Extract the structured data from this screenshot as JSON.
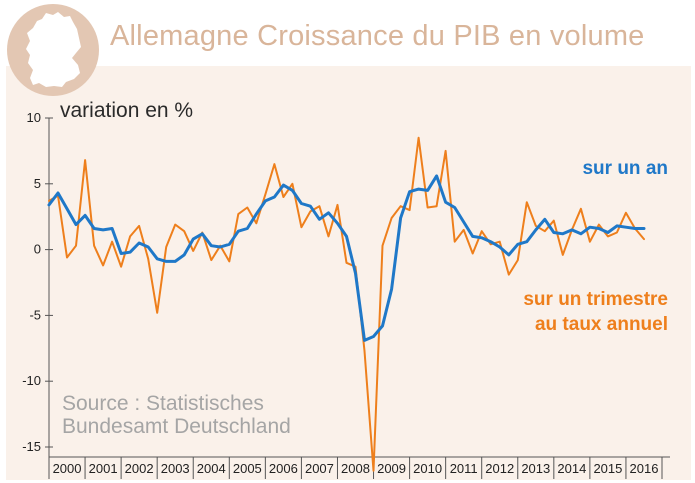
{
  "title": "Allemagne Croissance du PIB en volume",
  "logo": {
    "icon": "germany-map-icon",
    "fill": "#ffffff",
    "circle": "#d9b59a"
  },
  "unit_label": "variation en %",
  "source": "Source : Statistisches Bundesamt Deutschland",
  "annotations": {
    "annual": "sur un an",
    "quarterly": "sur un trimestre au taux annuel"
  },
  "colors": {
    "annual": "#1f78c8",
    "quarterly": "#ee7f1c",
    "title": "#d9b59a",
    "background": "#faf1ea"
  },
  "chart_data": {
    "type": "line",
    "title": "Allemagne Croissance du PIB en volume",
    "ylabel": "variation en %",
    "xlabel": "",
    "ylim": [
      -15,
      10
    ],
    "yticks": [
      10,
      5,
      0,
      -5,
      -10,
      -15
    ],
    "xlim": [
      2000.0,
      2017.0
    ],
    "xticks": [
      "2000",
      "2001",
      "2002",
      "2003",
      "2004",
      "2005",
      "2006",
      "2007",
      "2008",
      "2009",
      "2010",
      "2011",
      "2012",
      "2013",
      "2014",
      "2015",
      "2016"
    ],
    "grid": false,
    "series": [
      {
        "name": "sur un an",
        "color": "#1f78c8",
        "x": [
          2000.0,
          2000.25,
          2000.5,
          2000.75,
          2001.0,
          2001.25,
          2001.5,
          2001.75,
          2002.0,
          2002.25,
          2002.5,
          2002.75,
          2003.0,
          2003.25,
          2003.5,
          2003.75,
          2004.0,
          2004.25,
          2004.5,
          2004.75,
          2005.0,
          2005.25,
          2005.5,
          2005.75,
          2006.0,
          2006.25,
          2006.5,
          2006.75,
          2007.0,
          2007.25,
          2007.5,
          2007.75,
          2008.0,
          2008.25,
          2008.5,
          2008.75,
          2009.0,
          2009.25,
          2009.5,
          2009.75,
          2010.0,
          2010.25,
          2010.5,
          2010.75,
          2011.0,
          2011.25,
          2011.5,
          2011.75,
          2012.0,
          2012.25,
          2012.5,
          2012.75,
          2013.0,
          2013.25,
          2013.5,
          2013.75,
          2014.0,
          2014.25,
          2014.5,
          2014.75,
          2015.0,
          2015.25,
          2015.5,
          2015.75,
          2016.0,
          2016.25,
          2016.5
        ],
        "values": [
          3.4,
          4.3,
          3.1,
          1.9,
          2.6,
          1.6,
          1.5,
          1.6,
          -0.3,
          -0.2,
          0.5,
          0.2,
          -0.7,
          -0.9,
          -0.9,
          -0.4,
          0.8,
          1.2,
          0.3,
          0.2,
          0.4,
          1.4,
          1.6,
          2.7,
          3.7,
          4.0,
          4.9,
          4.5,
          3.5,
          3.3,
          2.3,
          2.8,
          2.0,
          1.0,
          -1.8,
          -6.9,
          -6.6,
          -5.8,
          -3.0,
          2.4,
          4.4,
          4.6,
          4.5,
          5.6,
          3.6,
          3.2,
          2.1,
          1.0,
          0.9,
          0.6,
          0.2,
          -0.4,
          0.4,
          0.6,
          1.5,
          2.3,
          1.3,
          1.2,
          1.5,
          1.2,
          1.7,
          1.6,
          1.3,
          1.8,
          1.7,
          1.6,
          1.6
        ]
      },
      {
        "name": "sur un trimestre au taux annuel",
        "color": "#ee7f1c",
        "x": [
          2000.0,
          2000.25,
          2000.5,
          2000.75,
          2001.0,
          2001.25,
          2001.5,
          2001.75,
          2002.0,
          2002.25,
          2002.5,
          2002.75,
          2003.0,
          2003.25,
          2003.5,
          2003.75,
          2004.0,
          2004.25,
          2004.5,
          2004.75,
          2005.0,
          2005.25,
          2005.5,
          2005.75,
          2006.0,
          2006.25,
          2006.5,
          2006.75,
          2007.0,
          2007.25,
          2007.5,
          2007.75,
          2008.0,
          2008.25,
          2008.5,
          2008.75,
          2009.0,
          2009.25,
          2009.5,
          2009.75,
          2010.0,
          2010.25,
          2010.5,
          2010.75,
          2011.0,
          2011.25,
          2011.5,
          2011.75,
          2012.0,
          2012.25,
          2012.5,
          2012.75,
          2013.0,
          2013.25,
          2013.5,
          2013.75,
          2014.0,
          2014.25,
          2014.5,
          2014.75,
          2015.0,
          2015.25,
          2015.5,
          2015.75,
          2016.0,
          2016.25,
          2016.5
        ],
        "values": [
          3.7,
          4.1,
          -0.6,
          0.3,
          6.8,
          0.3,
          -1.2,
          0.6,
          -1.3,
          1.0,
          1.8,
          -0.7,
          -4.8,
          0.2,
          1.9,
          1.4,
          -0.1,
          1.3,
          -0.8,
          0.3,
          -0.9,
          2.7,
          3.2,
          2.0,
          4.2,
          6.5,
          4.0,
          5.0,
          1.7,
          2.9,
          3.3,
          1.0,
          3.4,
          -1.0,
          -1.3,
          -7.7,
          -16.8,
          0.3,
          2.4,
          3.3,
          3.0,
          8.5,
          3.2,
          3.3,
          7.5,
          0.6,
          1.5,
          -0.3,
          1.4,
          0.4,
          0.6,
          -1.9,
          -0.8,
          3.6,
          1.8,
          1.4,
          2.2,
          -0.4,
          1.5,
          3.1,
          0.6,
          1.9,
          1.0,
          1.3,
          2.8,
          1.6,
          0.8
        ]
      }
    ]
  }
}
